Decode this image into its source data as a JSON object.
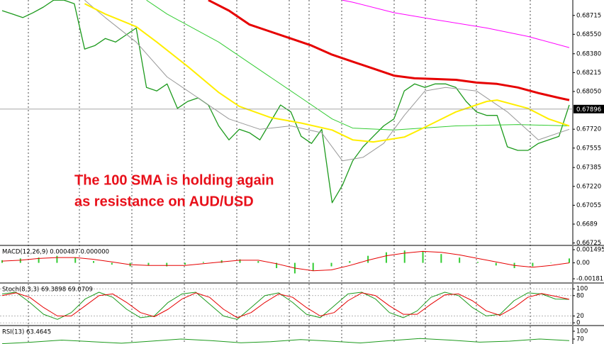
{
  "chart_data": [
    {
      "type": "line",
      "annotation": [
        "The 100 SMA is holding again",
        "as resistance on AUD/USD"
      ],
      "annotation_color": "#e8101a",
      "last_price": 0.67896,
      "ylim": [
        0.6671,
        0.6885
      ],
      "yticks": [
        0.68715,
        {
          "value": 0.6855,
          "label": "0.68550"
        },
        {
          "value": 0.6838,
          "label": "0.68380"
        },
        0.68215,
        {
          "value": 0.6805,
          "label": "0.68050"
        },
        {
          "value": 0.6772,
          "label": "0.67720"
        },
        0.67555,
        0.67385,
        {
          "value": 0.6722,
          "label": "0.67220"
        },
        0.67055,
        0.6689,
        0.66725
      ],
      "grid": false,
      "series": [
        {
          "color": "#1c9a1c",
          "width": 1.3,
          "values": [
            0.68757,
            0.68727,
            0.68696,
            0.68739,
            0.68788,
            0.68849,
            0.68849,
            0.68818,
            0.68421,
            0.68452,
            0.68513,
            0.68482,
            0.68543,
            0.68605,
            0.68085,
            0.68055,
            0.68116,
            0.67902,
            0.67963,
            0.67994,
            0.67932,
            0.67749,
            0.67627,
            0.67719,
            0.67688,
            0.67627,
            0.6778,
            0.67932,
            0.67871,
            0.67658,
            0.67596,
            0.67719,
            0.67077,
            0.6723,
            0.67444,
            0.67566,
            0.67658,
            0.67749,
            0.6781,
            0.68055,
            0.68116,
            0.68085,
            0.68116,
            0.68116,
            0.68085,
            0.67963,
            0.67871,
            0.67841,
            0.67841,
            0.67566,
            0.67535,
            0.67535,
            0.67596,
            0.67627,
            0.67658,
            0.67932
          ]
        },
        {
          "color": "#ff00ff",
          "width": 1,
          "x": [
            33,
            34,
            38,
            42,
            47,
            51,
            55
          ],
          "values": [
            0.68849,
            0.68831,
            0.68739,
            0.68678,
            0.68605,
            0.68531,
            0.68434
          ]
        },
        {
          "color": "#33cc33",
          "width": 1,
          "x": [
            14,
            16,
            21,
            25,
            29,
            32,
            34,
            38,
            44,
            50,
            55
          ],
          "values": [
            0.68849,
            0.68727,
            0.68482,
            0.68238,
            0.67994,
            0.6781,
            0.6773,
            0.67713,
            0.67749,
            0.67761,
            0.67749
          ]
        },
        {
          "color": "#999999",
          "width": 1,
          "x": [
            8,
            10,
            13,
            16,
            19,
            22,
            25,
            28,
            31,
            33,
            35,
            37,
            39,
            41,
            43,
            46,
            49,
            52,
            55
          ],
          "values": [
            0.68849,
            0.68696,
            0.68482,
            0.68177,
            0.67994,
            0.6781,
            0.67719,
            0.67749,
            0.67688,
            0.67444,
            0.67474,
            0.67596,
            0.67841,
            0.68055,
            0.68085,
            0.68055,
            0.67871,
            0.67627,
            0.67719
          ]
        },
        {
          "color": "#ffee00",
          "width": 2,
          "x": [
            8,
            10,
            13,
            15,
            18,
            21,
            23,
            26,
            29,
            32,
            34,
            36,
            39,
            41,
            44,
            47,
            48,
            51,
            53,
            55
          ],
          "values": [
            0.68818,
            0.68727,
            0.68617,
            0.68482,
            0.68269,
            0.68042,
            0.6792,
            0.67823,
            0.67774,
            0.67713,
            0.67627,
            0.67609,
            0.67651,
            0.67737,
            0.67871,
            0.67963,
            0.67975,
            0.67902,
            0.6781,
            0.67749
          ]
        },
        {
          "color": "#e60000",
          "width": 3,
          "x": [
            20,
            22,
            24,
            26,
            28,
            30,
            32,
            34,
            36,
            38,
            40,
            42,
            44,
            46,
            48,
            50,
            52,
            54,
            55
          ],
          "values": [
            0.68849,
            0.68757,
            0.68635,
            0.68574,
            0.68513,
            0.68452,
            0.68372,
            0.68311,
            0.6825,
            0.68189,
            0.68165,
            0.68159,
            0.68152,
            0.68128,
            0.68116,
            0.68085,
            0.68036,
            0.67994,
            0.67975
          ]
        }
      ]
    },
    {
      "type": "bar",
      "title": "MACD(12,26,9) 0.000487 0.000000",
      "ylim": [
        -0.00221,
        0.0019
      ],
      "yticks": [
        0.001495,
        {
          "value": 0,
          "label": "0.00"
        },
        -0.001811
      ],
      "grid": false,
      "color": "#33cc33",
      "values": [
        0.0003,
        0.0005,
        0.0006,
        0.0008,
        0.0006,
        0.0002,
        -0.0002,
        -0.0004,
        -0.0003,
        -0.0004,
        -0.0002,
        0.0001,
        0.0003,
        0.0004,
        0.0002,
        -0.0006,
        -0.0012,
        -0.0009,
        -0.0004,
        0.0002,
        0.0008,
        0.0012,
        0.0014,
        0.0013,
        0.001,
        0.0006,
        0.0001,
        -0.0003,
        -0.0006,
        -0.0004,
        0,
        0.0005
      ],
      "series": [
        {
          "color": "#e60000",
          "width": 1,
          "values": [
            0.0002,
            0.0003,
            0.0005,
            0.0006,
            0.0006,
            0.0004,
            0.0001,
            -0.0002,
            -0.0003,
            -0.0003,
            -0.0003,
            -0.0001,
            0.0001,
            0.0003,
            0.0003,
            -0.0001,
            -0.0006,
            -0.0009,
            -0.0008,
            -0.0003,
            0.0003,
            0.0008,
            0.0011,
            0.0013,
            0.0012,
            0.0009,
            0.0005,
            0.0001,
            -0.0003,
            -0.0005,
            -0.0003,
            0
          ]
        }
      ]
    },
    {
      "type": "line",
      "title": "Stoch(8,3,3) 69.3898 69.0709",
      "ylim": [
        -6,
        115
      ],
      "yticks": [
        100,
        80,
        20,
        0
      ],
      "grid": true,
      "series": [
        {
          "color": "#1c9a1c",
          "width": 1,
          "values": [
            85,
            90,
            60,
            25,
            10,
            30,
            70,
            90,
            75,
            40,
            15,
            20,
            60,
            85,
            90,
            55,
            20,
            10,
            45,
            80,
            88,
            60,
            25,
            15,
            50,
            85,
            90,
            70,
            30,
            15,
            35,
            75,
            90,
            80,
            45,
            20,
            25,
            65,
            88,
            85,
            70,
            69
          ]
        },
        {
          "color": "#e60000",
          "width": 1,
          "values": [
            80,
            88,
            75,
            45,
            20,
            20,
            50,
            80,
            85,
            60,
            30,
            18,
            40,
            70,
            88,
            75,
            40,
            15,
            30,
            60,
            85,
            75,
            45,
            20,
            30,
            65,
            88,
            80,
            50,
            25,
            25,
            55,
            82,
            85,
            65,
            35,
            22,
            45,
            75,
            86,
            78,
            69
          ]
        }
      ]
    },
    {
      "type": "line",
      "title": "RSI(13) 63.4645",
      "ylim": [
        51,
        119
      ],
      "yticks": [
        100,
        70
      ],
      "grid": false,
      "series": [
        {
          "color": "#1c9a1c",
          "width": 1,
          "values": [
            52,
            58,
            66,
            60,
            54,
            62,
            70,
            64,
            56,
            60,
            68,
            62,
            55,
            64,
            72,
            66,
            58,
            62,
            70,
            64
          ]
        }
      ]
    }
  ]
}
